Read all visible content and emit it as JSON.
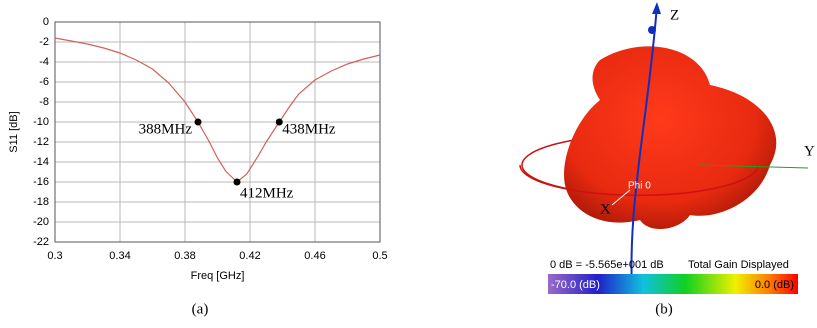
{
  "chart_data": {
    "type": "line",
    "xlabel": "Freq [GHz]",
    "ylabel": "S11 [dB]",
    "x": [
      0.3,
      0.31,
      0.32,
      0.33,
      0.34,
      0.35,
      0.36,
      0.37,
      0.38,
      0.388,
      0.395,
      0.4,
      0.405,
      0.412,
      0.418,
      0.425,
      0.43,
      0.438,
      0.445,
      0.45,
      0.46,
      0.47,
      0.48,
      0.49,
      0.5
    ],
    "series": [
      {
        "color": "#d4605a",
        "values": [
          -1.6,
          -1.9,
          -2.2,
          -2.6,
          -3.1,
          -3.8,
          -4.7,
          -6.1,
          -8.0,
          -10,
          -12.0,
          -13.6,
          -14.9,
          -16,
          -15.2,
          -13.4,
          -12.0,
          -10,
          -8.3,
          -7.2,
          -5.8,
          -4.9,
          -4.2,
          -3.7,
          -3.3
        ]
      }
    ],
    "points": {
      "x": [
        0.388,
        0.412,
        0.438
      ],
      "values": [
        -10,
        -16,
        -10
      ],
      "labels": [
        "388MHz",
        "412MHz",
        "438MHz"
      ]
    },
    "xlim": [
      0.3,
      0.5
    ],
    "xticks": [
      0.3,
      0.34,
      0.38,
      0.42,
      0.46,
      0.5
    ],
    "ylim": [
      -22,
      0
    ],
    "yticks": [
      0,
      -2,
      -4,
      -6,
      -8,
      -10,
      -12,
      -14,
      -16,
      -18,
      -20,
      -22
    ],
    "grid": true,
    "caption": "(a)"
  },
  "panel_b": {
    "axes": [
      "Z",
      "Y",
      "X"
    ],
    "marker": "Phi 0",
    "scale_note": "0 dB = -5.565e+001 dB",
    "scale_title": "Total Gain Displayed",
    "scale_min": "-70.0 (dB)",
    "scale_max": "0.0 (dB)",
    "caption": "(b)"
  }
}
